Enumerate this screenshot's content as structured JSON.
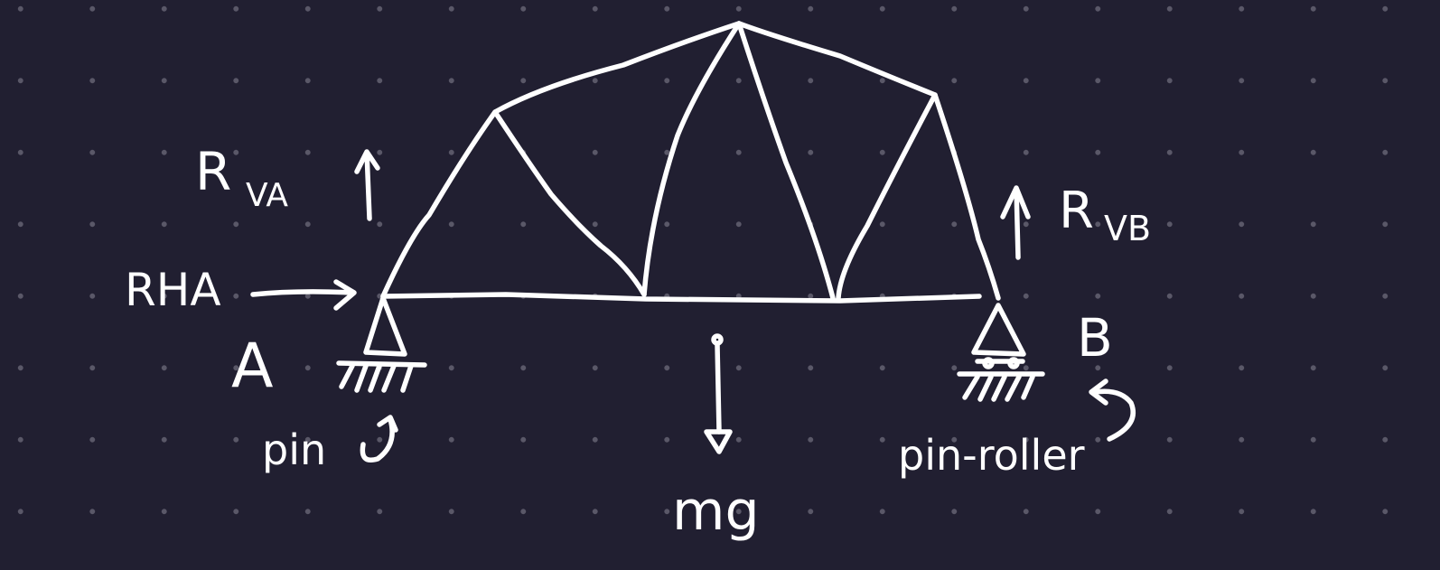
{
  "colors": {
    "background": "#211f31",
    "ink": "#ffffff",
    "grid_dot": "#5a5868"
  },
  "labels": {
    "rva_main": "R",
    "rva_sub": "VA",
    "rha": "RHA",
    "point_a": "A",
    "support_a": "pin",
    "mg": "mg",
    "rvb_main": "R",
    "rvb_sub": "VB",
    "point_b": "B",
    "support_b": "pin-roller"
  }
}
